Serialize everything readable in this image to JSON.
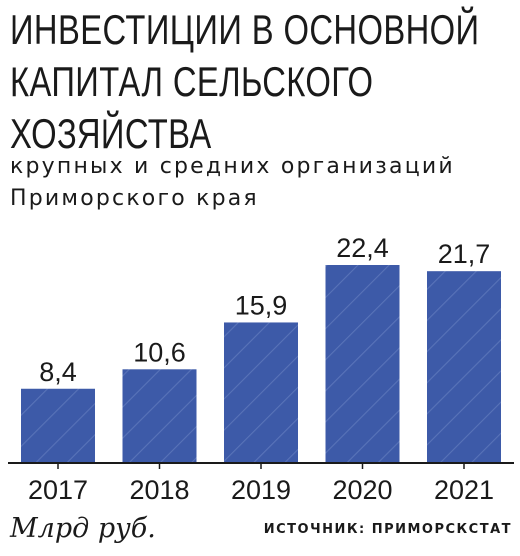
{
  "title": "ИНВЕСТИЦИИ В ОСНОВНОЙ КАПИТАЛ СЕЛЬСКОГО ХОЗЯЙСТВА",
  "title_lines": [
    "ИНВЕСТИЦИИ В ОСНОВНОЙ",
    "КАПИТАЛ СЕЛЬСКОГО",
    "ХОЗЯЙСТВА"
  ],
  "subtitle": "крупных и средних организаций\nПриморского края",
  "unit_label": "Млрд руб.",
  "source": "ИСТОЧНИК: ПРИМОРСКСТАТ",
  "colors": {
    "bar": "#3d5aa8",
    "hatch": "#5873b8",
    "axis": "#1a1a1a",
    "text": "#1a1a1a"
  },
  "chart_data": {
    "type": "bar",
    "categories": [
      "2017",
      "2018",
      "2019",
      "2020",
      "2021"
    ],
    "values": [
      8.4,
      10.6,
      15.9,
      22.4,
      21.7
    ],
    "value_labels": [
      "8,4",
      "10,6",
      "15,9",
      "22,4",
      "21,7"
    ],
    "title": "ИНВЕСТИЦИИ В ОСНОВНОЙ КАПИТАЛ СЕЛЬСКОГО ХОЗЯЙСТВА",
    "subtitle": "крупных и средних организаций Приморского края",
    "xlabel": "",
    "ylabel": "Млрд руб.",
    "ylim": [
      0,
      22.4
    ],
    "grid": false,
    "legend": "none"
  }
}
